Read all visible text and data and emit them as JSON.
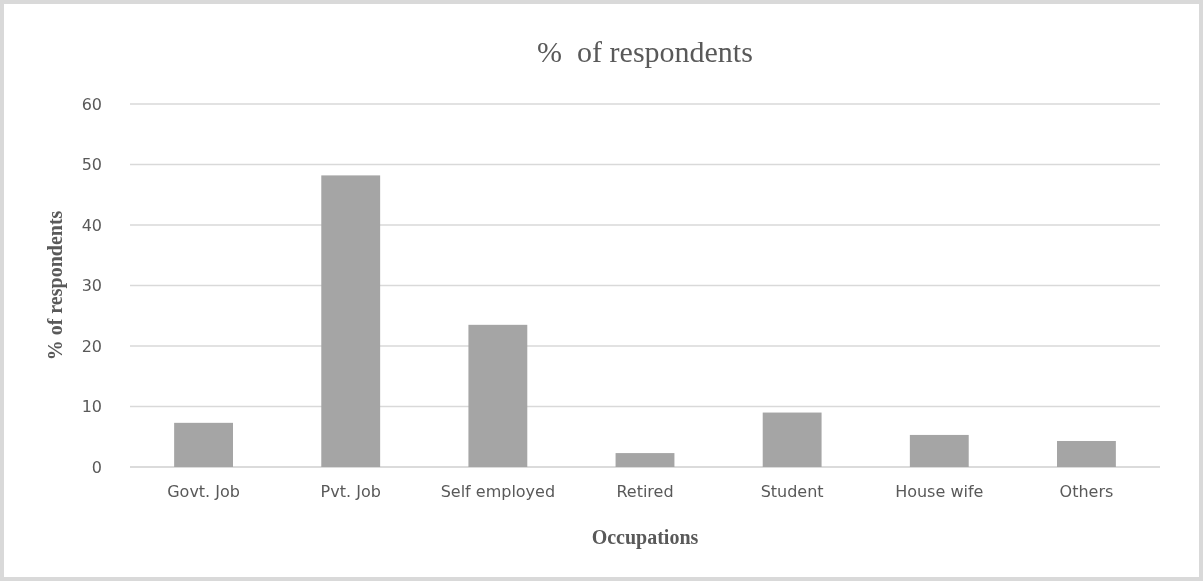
{
  "chart_data": {
    "type": "bar",
    "title": "%  of respondents",
    "xlabel": "Occupations",
    "ylabel": "% of respondents",
    "categories": [
      "Govt. Job",
      "Pvt. Job",
      "Self employed",
      "Retired",
      "Student",
      "House wife",
      "Others"
    ],
    "values": [
      7.3,
      48.2,
      23.5,
      2.3,
      9.0,
      5.3,
      4.3
    ],
    "color": "#a5a5a5",
    "ylim": [
      0,
      60
    ],
    "yticks": [
      0,
      10,
      20,
      30,
      40,
      50,
      60
    ],
    "grid": "y"
  }
}
